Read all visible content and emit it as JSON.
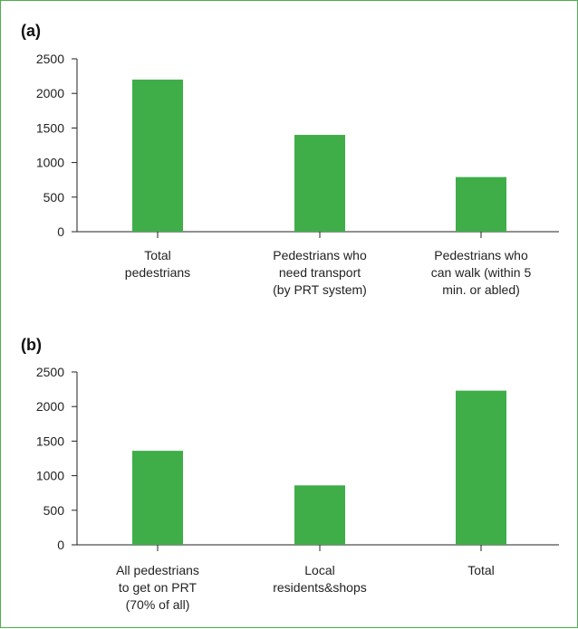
{
  "colors": {
    "bar": "#3fae49",
    "frame": "#4caf50",
    "text": "#222222"
  },
  "chart_data": [
    {
      "type": "bar",
      "panel_label": "(a)",
      "title": "",
      "xlabel": "",
      "ylabel": "",
      "ylim": [
        0,
        2500
      ],
      "yticks": [
        0,
        500,
        1000,
        1500,
        2000,
        2500
      ],
      "grid": false,
      "categories": [
        [
          "Total",
          "pedestrians"
        ],
        [
          "Pedestrians who",
          "need transport",
          "(by PRT system)"
        ],
        [
          "Pedestrians who",
          "can walk (within 5",
          "min. or abled)"
        ]
      ],
      "values": [
        2200,
        1400,
        790
      ]
    },
    {
      "type": "bar",
      "panel_label": "(b)",
      "title": "",
      "xlabel": "",
      "ylabel": "",
      "ylim": [
        0,
        2500
      ],
      "yticks": [
        0,
        500,
        1000,
        1500,
        2000,
        2500
      ],
      "grid": false,
      "categories": [
        [
          "All pedestrians",
          "to get on PRT",
          "(70% of all)"
        ],
        [
          "Local",
          "residents&shops"
        ],
        [
          "Total"
        ]
      ],
      "values": [
        1360,
        860,
        2230
      ]
    }
  ]
}
